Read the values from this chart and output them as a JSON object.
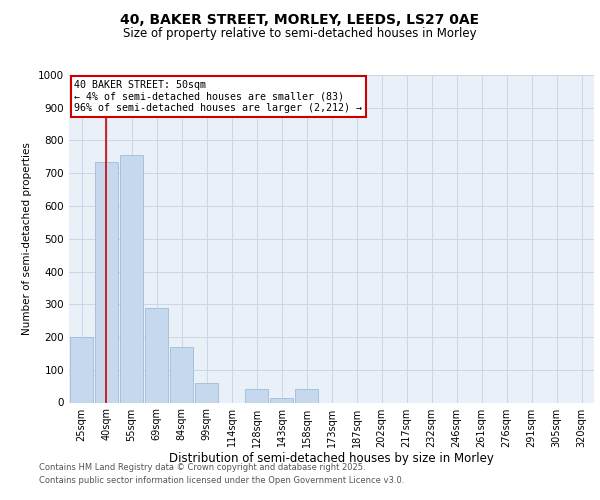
{
  "title": "40, BAKER STREET, MORLEY, LEEDS, LS27 0AE",
  "subtitle": "Size of property relative to semi-detached houses in Morley",
  "xlabel": "Distribution of semi-detached houses by size in Morley",
  "ylabel": "Number of semi-detached properties",
  "categories": [
    "25sqm",
    "40sqm",
    "55sqm",
    "69sqm",
    "84sqm",
    "99sqm",
    "114sqm",
    "128sqm",
    "143sqm",
    "158sqm",
    "173sqm",
    "187sqm",
    "202sqm",
    "217sqm",
    "232sqm",
    "246sqm",
    "261sqm",
    "276sqm",
    "291sqm",
    "305sqm",
    "320sqm"
  ],
  "values": [
    200,
    735,
    755,
    290,
    170,
    60,
    0,
    40,
    15,
    42,
    0,
    0,
    0,
    0,
    0,
    0,
    0,
    0,
    0,
    0,
    0
  ],
  "bar_color": "#c5d8ed",
  "bar_edge_color": "#a0bcd8",
  "grid_color": "#c8d8e8",
  "background_color": "#eaf0f7",
  "annotation_text": "40 BAKER STREET: 50sqm\n← 4% of semi-detached houses are smaller (83)\n96% of semi-detached houses are larger (2,212) →",
  "annotation_box_color": "#ffffff",
  "annotation_box_edge": "#cc0000",
  "vline_x": 0.97,
  "vline_color": "#cc0000",
  "ylim": [
    0,
    1000
  ],
  "yticks": [
    0,
    100,
    200,
    300,
    400,
    500,
    600,
    700,
    800,
    900,
    1000
  ],
  "footer_line1": "Contains HM Land Registry data © Crown copyright and database right 2025.",
  "footer_line2": "Contains public sector information licensed under the Open Government Licence v3.0."
}
